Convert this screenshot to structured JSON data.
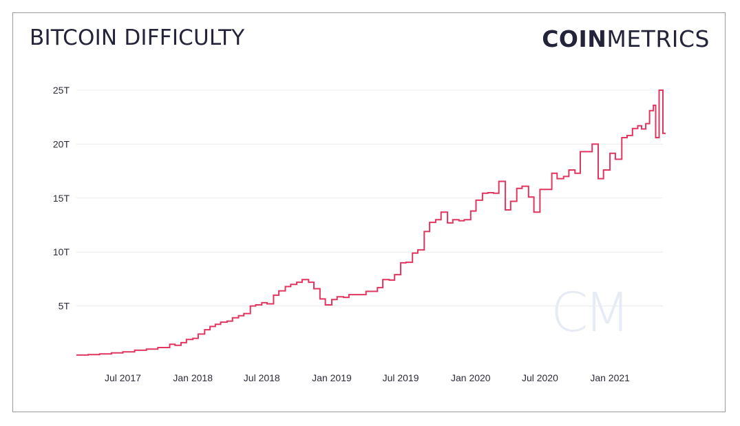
{
  "header": {
    "title": "BITCOIN DIFFICULTY",
    "brand_bold": "COIN",
    "brand_light": "METRICS",
    "watermark": "CM"
  },
  "colors": {
    "line": "#e2345e",
    "grid": "#ececec",
    "text": "#23233a",
    "watermark": "#e6ebf4"
  },
  "chart_data": {
    "type": "line",
    "title": "BITCOIN DIFFICULTY",
    "xlabel": "",
    "ylabel": "",
    "grid": true,
    "step": true,
    "ylim": [
      0,
      25
    ],
    "y_unit": "T",
    "y_ticks": [
      "5T",
      "10T",
      "15T",
      "20T",
      "25T"
    ],
    "x_ticks": [
      "Jul 2017",
      "Jan 2018",
      "Jul 2018",
      "Jan 2019",
      "Jul 2019",
      "Jan 2020",
      "Jul 2020",
      "Jan 2021"
    ],
    "x_range": [
      "2017-03-01",
      "2021-05-20"
    ],
    "series": [
      {
        "points": [
          [
            "2017-03-01",
            0.45
          ],
          [
            "2017-04-01",
            0.5
          ],
          [
            "2017-05-01",
            0.56
          ],
          [
            "2017-06-01",
            0.65
          ],
          [
            "2017-07-01",
            0.75
          ],
          [
            "2017-08-01",
            0.9
          ],
          [
            "2017-09-01",
            1.0
          ],
          [
            "2017-10-01",
            1.15
          ],
          [
            "2017-11-01",
            1.45
          ],
          [
            "2017-11-15",
            1.35
          ],
          [
            "2017-12-01",
            1.6
          ],
          [
            "2017-12-15",
            1.9
          ],
          [
            "2018-01-01",
            2.0
          ],
          [
            "2018-01-15",
            2.4
          ],
          [
            "2018-02-01",
            2.8
          ],
          [
            "2018-02-15",
            3.1
          ],
          [
            "2018-03-01",
            3.3
          ],
          [
            "2018-03-15",
            3.5
          ],
          [
            "2018-04-01",
            3.6
          ],
          [
            "2018-04-15",
            3.9
          ],
          [
            "2018-05-01",
            4.1
          ],
          [
            "2018-05-15",
            4.3
          ],
          [
            "2018-06-01",
            5.0
          ],
          [
            "2018-06-15",
            5.1
          ],
          [
            "2018-07-01",
            5.3
          ],
          [
            "2018-07-15",
            5.2
          ],
          [
            "2018-08-01",
            6.0
          ],
          [
            "2018-08-15",
            6.4
          ],
          [
            "2018-09-01",
            6.8
          ],
          [
            "2018-09-15",
            7.0
          ],
          [
            "2018-10-01",
            7.2
          ],
          [
            "2018-10-15",
            7.45
          ],
          [
            "2018-11-01",
            7.2
          ],
          [
            "2018-11-15",
            6.6
          ],
          [
            "2018-12-01",
            5.65
          ],
          [
            "2018-12-15",
            5.1
          ],
          [
            "2019-01-01",
            5.6
          ],
          [
            "2019-01-15",
            5.85
          ],
          [
            "2019-02-01",
            5.8
          ],
          [
            "2019-02-15",
            6.05
          ],
          [
            "2019-03-01",
            6.05
          ],
          [
            "2019-04-01",
            6.35
          ],
          [
            "2019-05-01",
            6.7
          ],
          [
            "2019-05-15",
            7.45
          ],
          [
            "2019-06-01",
            7.4
          ],
          [
            "2019-06-15",
            7.9
          ],
          [
            "2019-07-01",
            9.0
          ],
          [
            "2019-07-15",
            9.05
          ],
          [
            "2019-08-01",
            9.9
          ],
          [
            "2019-08-15",
            10.2
          ],
          [
            "2019-09-01",
            11.9
          ],
          [
            "2019-09-15",
            12.75
          ],
          [
            "2019-10-01",
            13.0
          ],
          [
            "2019-10-15",
            13.7
          ],
          [
            "2019-11-01",
            12.7
          ],
          [
            "2019-11-15",
            13.0
          ],
          [
            "2019-12-01",
            12.9
          ],
          [
            "2019-12-15",
            13.0
          ],
          [
            "2020-01-01",
            13.8
          ],
          [
            "2020-01-15",
            14.8
          ],
          [
            "2020-02-01",
            15.45
          ],
          [
            "2020-02-15",
            15.5
          ],
          [
            "2020-03-01",
            15.45
          ],
          [
            "2020-03-15",
            16.55
          ],
          [
            "2020-04-01",
            13.9
          ],
          [
            "2020-04-15",
            14.7
          ],
          [
            "2020-05-01",
            15.9
          ],
          [
            "2020-05-15",
            16.1
          ],
          [
            "2020-06-01",
            15.1
          ],
          [
            "2020-06-15",
            13.7
          ],
          [
            "2020-07-01",
            15.8
          ],
          [
            "2020-07-15",
            15.8
          ],
          [
            "2020-08-01",
            17.3
          ],
          [
            "2020-08-15",
            16.8
          ],
          [
            "2020-09-01",
            17.0
          ],
          [
            "2020-09-15",
            17.6
          ],
          [
            "2020-10-01",
            17.3
          ],
          [
            "2020-10-15",
            19.3
          ],
          [
            "2020-11-01",
            19.3
          ],
          [
            "2020-11-15",
            20.0
          ],
          [
            "2020-12-01",
            16.8
          ],
          [
            "2020-12-15",
            17.6
          ],
          [
            "2021-01-01",
            19.15
          ],
          [
            "2021-01-15",
            18.6
          ],
          [
            "2021-02-01",
            20.6
          ],
          [
            "2021-02-15",
            20.8
          ],
          [
            "2021-03-01",
            21.45
          ],
          [
            "2021-03-15",
            21.7
          ],
          [
            "2021-03-25",
            21.4
          ],
          [
            "2021-04-05",
            21.9
          ],
          [
            "2021-04-15",
            23.1
          ],
          [
            "2021-04-25",
            23.6
          ],
          [
            "2021-05-01",
            20.6
          ],
          [
            "2021-05-10",
            25.0
          ],
          [
            "2021-05-20",
            21.0
          ]
        ]
      }
    ]
  }
}
